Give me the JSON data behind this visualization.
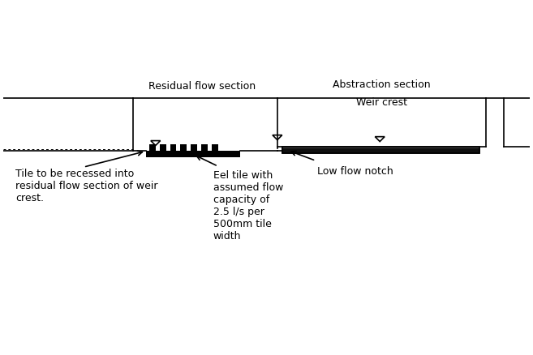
{
  "bg_color": "#ffffff",
  "line_color": "#000000",
  "residual_flow_label": "Residual flow section",
  "abstraction_label": "Abstraction section",
  "weir_crest_label": "Weir crest",
  "low_flow_notch_label": "Low flow notch",
  "tile_recess_label": "Tile to be recessed into\nresidual flow section of weir\ncrest.",
  "eel_tile_label": "Eel tile with\nassumed flow\ncapacity of\n2.5 l/s per\n500mm tile\nwidth",
  "font_size": 9
}
